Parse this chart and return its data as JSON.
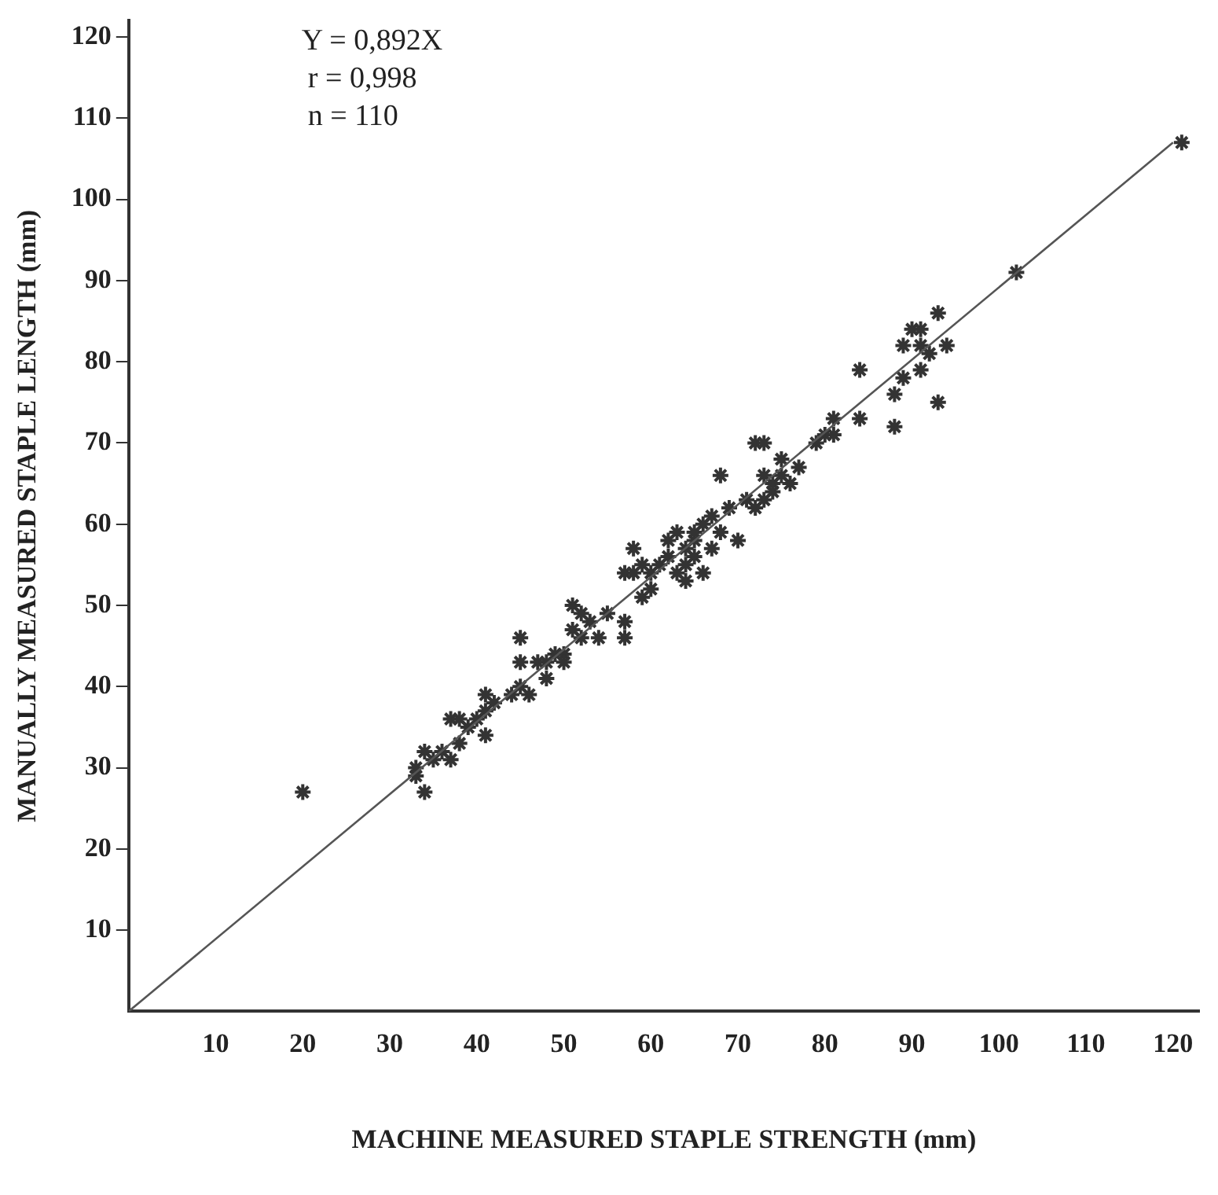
{
  "chart_data": {
    "type": "scatter",
    "xlabel": "MACHINE MEASURED STAPLE STRENGTH (mm)",
    "ylabel": "MANUALLY MEASURED STAPLE LENGTH (mm)",
    "annotations": [
      "Y = 0,892X",
      "r = 0,998",
      "n = 110"
    ],
    "xlim": [
      0,
      123
    ],
    "ylim": [
      0,
      122
    ],
    "xticks": [
      10,
      20,
      30,
      40,
      50,
      60,
      70,
      80,
      90,
      100,
      110,
      120
    ],
    "yticks": [
      10,
      20,
      30,
      40,
      50,
      60,
      70,
      80,
      90,
      100,
      110,
      120
    ],
    "grid": false,
    "legend": false,
    "marker": "cross",
    "series": [
      {
        "color": "#333333",
        "x": [
          20,
          33,
          33,
          34,
          34,
          35,
          36,
          37,
          37,
          38,
          38,
          39,
          40,
          41,
          41,
          41,
          42,
          44,
          45,
          45,
          45,
          46,
          47,
          48,
          48,
          49,
          50,
          50,
          51,
          51,
          52,
          52,
          53,
          54,
          55,
          57,
          57,
          57,
          58,
          58,
          59,
          59,
          60,
          60,
          61,
          62,
          62,
          63,
          63,
          64,
          64,
          64,
          65,
          65,
          65,
          66,
          66,
          67,
          67,
          68,
          68,
          69,
          70,
          71,
          72,
          72,
          73,
          73,
          73,
          74,
          74,
          75,
          75,
          76,
          77,
          79,
          80,
          81,
          81,
          84,
          84,
          88,
          88,
          89,
          89,
          90,
          91,
          91,
          91,
          92,
          93,
          93,
          94,
          102,
          121
        ],
        "values": [
          27,
          29,
          30,
          27,
          32,
          31,
          32,
          31,
          36,
          36,
          33,
          35,
          36,
          37,
          34,
          39,
          38,
          39,
          40,
          43,
          46,
          39,
          43,
          41,
          43,
          44,
          44,
          43,
          47,
          50,
          49,
          46,
          48,
          46,
          49,
          54,
          46,
          48,
          54,
          57,
          51,
          55,
          54,
          52,
          55,
          56,
          58,
          59,
          54,
          57,
          55,
          53,
          58,
          59,
          56,
          54,
          60,
          61,
          57,
          66,
          59,
          62,
          58,
          63,
          62,
          70,
          63,
          66,
          70,
          64,
          65,
          66,
          68,
          65,
          67,
          70,
          71,
          73,
          71,
          73,
          79,
          72,
          76,
          78,
          82,
          84,
          82,
          84,
          79,
          81,
          75,
          86,
          82,
          91,
          107
        ]
      },
      {
        "type": "line",
        "color": "#555555",
        "marker": "none",
        "x": [
          0,
          120
        ],
        "values": [
          0,
          107
        ]
      }
    ]
  }
}
